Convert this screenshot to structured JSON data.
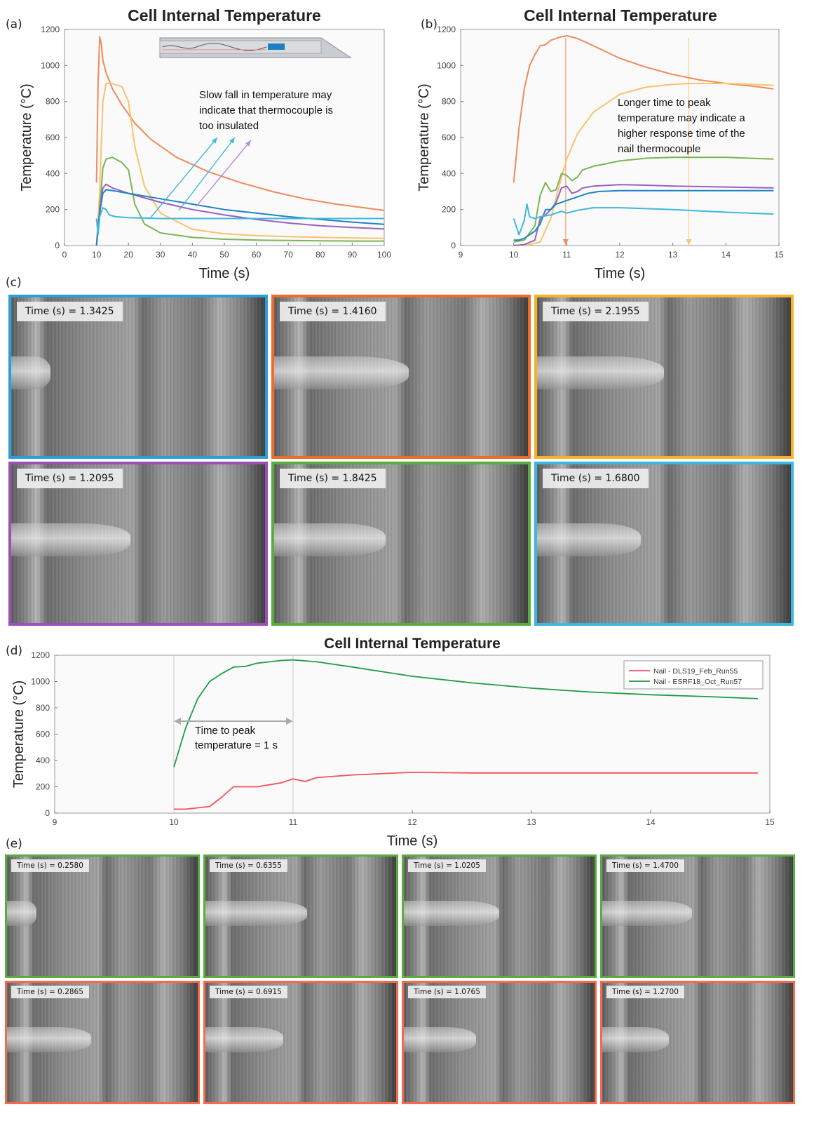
{
  "panel_labels": {
    "a": "(a)",
    "b": "(b)",
    "c": "(c)",
    "d": "(d)",
    "e": "(e)"
  },
  "colors": {
    "orange": "#f08a5d",
    "yellow": "#f9c36a",
    "green": "#79b557",
    "purple": "#9b5fc0",
    "blue": "#1f84c3",
    "cyan": "#3fb8dd",
    "red": "#f0525a",
    "dgreen": "#1f9c45",
    "frame_blue": "#2aa0d8",
    "frame_orange": "#f06a2a",
    "frame_yellow": "#f8b22a",
    "frame_purple": "#9b4fb8",
    "frame_green": "#58ad3c",
    "frame_cyan": "#3bb6e0",
    "frame_red": "#f26a4f"
  },
  "chart_data": [
    {
      "id": "a",
      "type": "line",
      "title": "Cell Internal Temperature",
      "xlabel": "Time (s)",
      "ylabel": "Temperature (°C)",
      "xlim": [
        0,
        100
      ],
      "ylim": [
        0,
        1200
      ],
      "xticks": [
        0,
        10,
        20,
        30,
        40,
        50,
        60,
        70,
        80,
        90,
        100
      ],
      "yticks": [
        0,
        200,
        400,
        600,
        800,
        1000,
        1200
      ],
      "grid": false,
      "annotations": [
        {
          "lines": [
            "Slow fall in temperature may",
            "indicate that thermocouple is",
            "too insulated"
          ]
        }
      ],
      "series": [
        {
          "color": "orange",
          "x": [
            10,
            10.5,
            11,
            11.5,
            12,
            13,
            15,
            18,
            22,
            27,
            35,
            45,
            55,
            65,
            75,
            85,
            100
          ],
          "y": [
            350,
            900,
            1160,
            1120,
            1030,
            960,
            870,
            780,
            680,
            590,
            490,
            410,
            350,
            300,
            260,
            230,
            195
          ]
        },
        {
          "color": "yellow",
          "x": [
            10,
            11,
            12,
            13,
            15,
            18,
            20,
            22,
            25,
            30,
            40,
            50,
            60,
            70,
            80,
            90,
            100
          ],
          "y": [
            0,
            300,
            800,
            900,
            900,
            880,
            800,
            550,
            330,
            180,
            90,
            65,
            55,
            50,
            45,
            42,
            40
          ]
        },
        {
          "color": "green",
          "x": [
            10,
            11,
            12,
            13,
            15,
            18,
            20,
            22,
            25,
            30,
            40,
            50,
            60,
            70,
            80,
            90,
            100
          ],
          "y": [
            0,
            200,
            430,
            480,
            490,
            460,
            420,
            230,
            120,
            70,
            45,
            35,
            30,
            28,
            26,
            25,
            25
          ]
        },
        {
          "color": "purple",
          "x": [
            10,
            11,
            12,
            13,
            15,
            20,
            30,
            40,
            50,
            60,
            70,
            80,
            90,
            100
          ],
          "y": [
            0,
            200,
            320,
            340,
            320,
            290,
            240,
            200,
            170,
            145,
            125,
            110,
            100,
            92
          ]
        },
        {
          "color": "blue",
          "x": [
            10,
            11,
            12,
            13,
            15,
            20,
            30,
            40,
            50,
            60,
            70,
            80,
            90,
            100
          ],
          "y": [
            0,
            180,
            290,
            310,
            305,
            290,
            260,
            230,
            200,
            180,
            160,
            145,
            130,
            118
          ]
        },
        {
          "color": "cyan",
          "x": [
            10,
            10.5,
            11,
            12,
            13,
            14,
            16,
            20,
            30,
            50,
            70,
            100
          ],
          "y": [
            150,
            60,
            160,
            210,
            200,
            170,
            160,
            155,
            150,
            150,
            150,
            150
          ]
        }
      ]
    },
    {
      "id": "b",
      "type": "line",
      "title": "Cell Internal Temperature",
      "xlabel": "Time (s)",
      "ylabel": "Temperature (°C)",
      "xlim": [
        9,
        15
      ],
      "ylim": [
        0,
        1200
      ],
      "xticks": [
        9,
        10,
        11,
        12,
        13,
        14,
        15
      ],
      "yticks": [
        0,
        200,
        400,
        600,
        800,
        1000,
        1200
      ],
      "grid": false,
      "annotations": [
        {
          "lines": [
            "Longer time to peak",
            "temperature may indicate a",
            "higher response time of the",
            "nail thermocouple"
          ]
        }
      ],
      "markers": [
        {
          "x": 10.98,
          "color": "orange"
        },
        {
          "x": 13.3,
          "color": "yellow"
        }
      ],
      "series": [
        {
          "color": "orange",
          "x": [
            10,
            10.1,
            10.2,
            10.3,
            10.4,
            10.5,
            10.6,
            10.7,
            10.8,
            10.9,
            11,
            11.2,
            11.5,
            12,
            12.5,
            13,
            13.5,
            14,
            14.5,
            14.9
          ],
          "y": [
            350,
            650,
            870,
            1000,
            1060,
            1110,
            1115,
            1140,
            1150,
            1160,
            1165,
            1150,
            1110,
            1040,
            990,
            950,
            920,
            900,
            885,
            870
          ]
        },
        {
          "color": "yellow",
          "x": [
            10,
            10.3,
            10.5,
            10.7,
            10.9,
            11,
            11.2,
            11.5,
            12,
            12.5,
            13,
            13.3,
            14,
            14.5,
            14.9
          ],
          "y": [
            0,
            5,
            20,
            150,
            380,
            480,
            620,
            740,
            840,
            880,
            895,
            900,
            900,
            895,
            890
          ]
        },
        {
          "color": "green",
          "x": [
            10,
            10.2,
            10.4,
            10.5,
            10.6,
            10.7,
            10.8,
            10.9,
            11,
            11.1,
            11.2,
            11.3,
            11.5,
            12,
            12.5,
            13,
            14,
            14.9
          ],
          "y": [
            20,
            30,
            110,
            280,
            350,
            300,
            310,
            400,
            390,
            360,
            380,
            420,
            440,
            470,
            485,
            490,
            490,
            480
          ]
        },
        {
          "color": "purple",
          "x": [
            10,
            10.2,
            10.4,
            10.5,
            10.6,
            10.7,
            10.8,
            10.9,
            11,
            11.1,
            11.2,
            11.3,
            11.5,
            12,
            12.5,
            13,
            14,
            14.9
          ],
          "y": [
            0,
            5,
            30,
            150,
            170,
            200,
            240,
            320,
            330,
            290,
            300,
            320,
            330,
            338,
            335,
            330,
            325,
            320
          ]
        },
        {
          "color": "blue",
          "x": [
            10,
            10.1,
            10.2,
            10.3,
            10.4,
            10.5,
            10.6,
            10.7,
            10.8,
            10.9,
            11,
            11.2,
            11.4,
            11.6,
            12,
            12.5,
            13,
            14,
            14.9
          ],
          "y": [
            30,
            30,
            40,
            60,
            80,
            120,
            200,
            200,
            230,
            240,
            250,
            270,
            290,
            300,
            305,
            305,
            305,
            305,
            305
          ]
        },
        {
          "color": "cyan",
          "x": [
            10,
            10.1,
            10.2,
            10.25,
            10.3,
            10.4,
            10.5,
            10.7,
            10.8,
            10.9,
            11,
            11.2,
            11.5,
            12,
            12.5,
            13,
            14,
            14.9
          ],
          "y": [
            150,
            60,
            140,
            230,
            160,
            150,
            160,
            170,
            180,
            190,
            180,
            195,
            210,
            210,
            205,
            200,
            185,
            175
          ]
        }
      ]
    },
    {
      "id": "d",
      "type": "line",
      "title": "Cell Internal Temperature",
      "xlabel": "Time (s)",
      "ylabel": "Temperature (°C)",
      "xlim": [
        9,
        15
      ],
      "ylim": [
        0,
        1200
      ],
      "xticks": [
        9,
        10,
        11,
        12,
        13,
        14,
        15
      ],
      "yticks": [
        0,
        200,
        400,
        600,
        800,
        1000,
        1200
      ],
      "grid": false,
      "legend_position": "top-right",
      "annotations": [
        {
          "lines": [
            "Time to peak",
            "temperature = 1 s"
          ]
        }
      ],
      "series": [
        {
          "name": "Nail - DLS19_Feb_Run55",
          "color": "red",
          "x": [
            10,
            10.1,
            10.2,
            10.3,
            10.4,
            10.5,
            10.6,
            10.7,
            10.8,
            10.9,
            11,
            11.1,
            11.2,
            11.5,
            12,
            12.5,
            13,
            14,
            14.9
          ],
          "y": [
            30,
            30,
            40,
            50,
            120,
            200,
            200,
            200,
            215,
            230,
            260,
            240,
            270,
            290,
            310,
            305,
            305,
            305,
            305
          ]
        },
        {
          "name": "Nail - ESRF18_Oct_Run57",
          "color": "dgreen",
          "x": [
            10,
            10.1,
            10.2,
            10.3,
            10.4,
            10.5,
            10.6,
            10.7,
            10.8,
            10.9,
            11,
            11.2,
            11.5,
            12,
            12.5,
            13,
            13.5,
            14,
            14.5,
            14.9
          ],
          "y": [
            350,
            650,
            870,
            1000,
            1060,
            1110,
            1115,
            1140,
            1150,
            1160,
            1165,
            1150,
            1110,
            1040,
            990,
            950,
            920,
            900,
            885,
            870
          ]
        }
      ]
    }
  ],
  "tiles_c": [
    {
      "time": "Time (s) = 1.3425",
      "frame": "frame_blue"
    },
    {
      "time": "Time (s) = 1.4160",
      "frame": "frame_orange"
    },
    {
      "time": "Time (s) = 2.1955",
      "frame": "frame_yellow"
    },
    {
      "time": "Time (s) = 1.2095",
      "frame": "frame_purple"
    },
    {
      "time": "Time (s) = 1.8425",
      "frame": "frame_green"
    },
    {
      "time": "Time (s) = 1.6800",
      "frame": "frame_cyan"
    }
  ],
  "tiles_e": [
    {
      "time": "Time (s) = 0.2580",
      "frame": "frame_green"
    },
    {
      "time": "Time (s) = 0.6355",
      "frame": "frame_green"
    },
    {
      "time": "Time (s) = 1.0205",
      "frame": "frame_green"
    },
    {
      "time": "Time (s) = 1.4700",
      "frame": "frame_green"
    },
    {
      "time": "Time (s) = 0.2865",
      "frame": "frame_red"
    },
    {
      "time": "Time (s) = 0.6915",
      "frame": "frame_red"
    },
    {
      "time": "Time (s) = 1.0765",
      "frame": "frame_red"
    },
    {
      "time": "Time (s) = 1.2700",
      "frame": "frame_red"
    }
  ]
}
